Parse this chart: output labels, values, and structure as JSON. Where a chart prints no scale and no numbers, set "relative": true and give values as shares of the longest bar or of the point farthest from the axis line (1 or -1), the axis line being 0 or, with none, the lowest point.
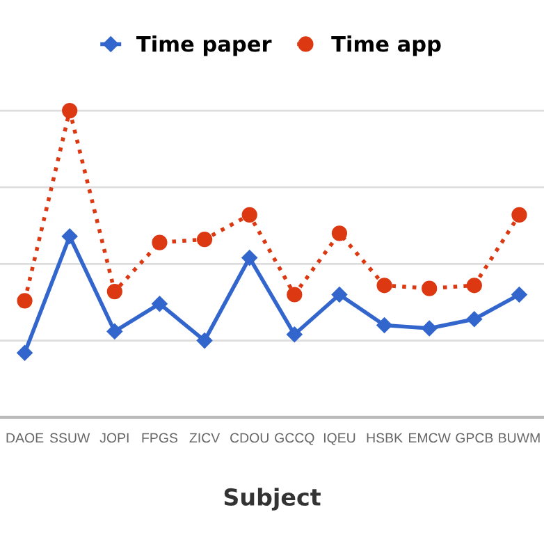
{
  "chart_data": {
    "type": "line",
    "relative": true,
    "xlabel": "Subject",
    "categories": [
      "DAOE",
      "SSUW",
      "JOPI",
      "FPGS",
      "ZICV",
      "CDOU",
      "GCCQ",
      "IQEU",
      "HSBK",
      "EMCW",
      "GPCB",
      "BUWM"
    ],
    "series": [
      {
        "name": "Time paper",
        "color": "#3366cc",
        "marker": "diamond",
        "line_style": "solid",
        "values": [
          0.21,
          0.59,
          0.28,
          0.37,
          0.25,
          0.52,
          0.27,
          0.4,
          0.3,
          0.29,
          0.32,
          0.4
        ]
      },
      {
        "name": "Time app",
        "color": "#dc3912",
        "marker": "circle",
        "line_style": "dotted",
        "values": [
          0.38,
          1,
          0.41,
          0.57,
          0.58,
          0.66,
          0.4,
          0.6,
          0.43,
          0.42,
          0.43,
          0.66
        ]
      }
    ],
    "grid": "y",
    "legend": "top"
  }
}
